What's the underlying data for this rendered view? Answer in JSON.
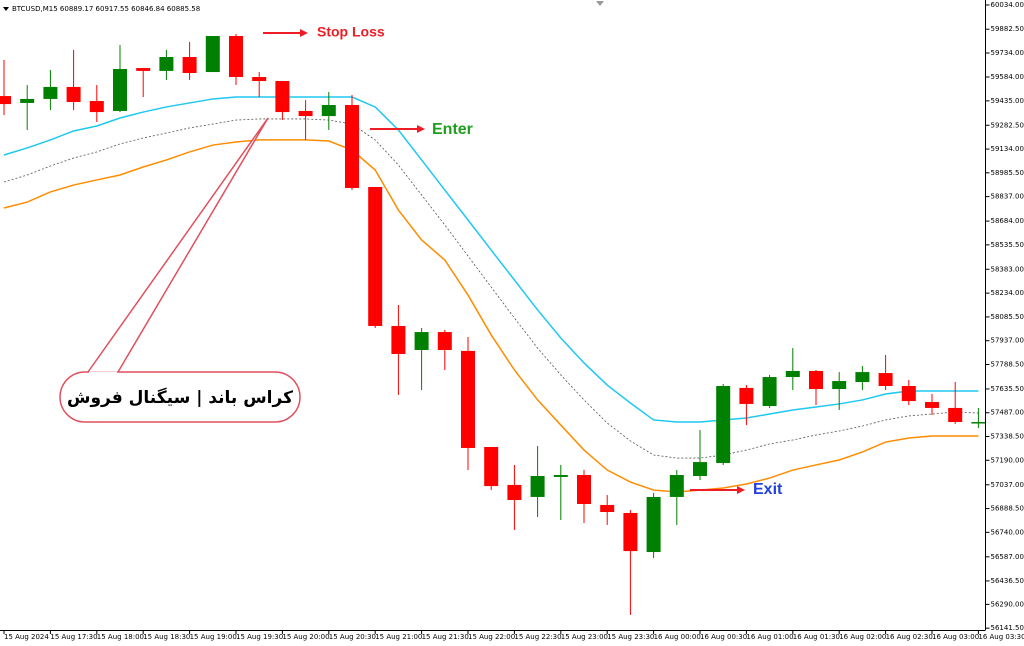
{
  "chart_data": {
    "type": "candlestick",
    "header": "BTCUSD,M15  60889.17 60917.55 60846.84 60885.58",
    "categories": [
      "15 Aug 2024",
      null,
      "15 Aug 17:30",
      null,
      "15 Aug 18:00",
      null,
      "15 Aug 18:30",
      null,
      "15 Aug 19:00",
      null,
      "15 Aug 19:30",
      null,
      "15 Aug 20:00",
      null,
      "15 Aug 20:30",
      null,
      "15 Aug 21:00",
      null,
      "15 Aug 21:30",
      null,
      "15 Aug 22:00",
      null,
      "15 Aug 22:30",
      null,
      "15 Aug 23:00",
      null,
      "15 Aug 23:30",
      null,
      "16 Aug 00:00",
      null,
      "16 Aug 00:30",
      null,
      "16 Aug 01:00",
      null,
      "16 Aug 01:30",
      null,
      "16 Aug 02:00",
      null,
      "16 Aug 02:30",
      null,
      "16 Aug 03:00",
      null,
      "16 Aug 03:30"
    ],
    "open": [
      59465,
      59422,
      59447,
      59522,
      59434,
      59372,
      59640,
      59622,
      59709,
      59615,
      59840,
      59584,
      59559,
      59372,
      59340,
      59409,
      58897,
      58029,
      57879,
      57991,
      57873,
      57273,
      57036,
      56961,
      57086,
      57098,
      56911,
      56861,
      56617,
      56961,
      57092,
      57173,
      57642,
      57529,
      57710,
      57748,
      57635,
      57679,
      57735,
      57654,
      57554,
      57517,
      57423
    ],
    "high": [
      59690,
      59534,
      59628,
      59753,
      59534,
      59784,
      59640,
      59753,
      59803,
      59840,
      59853,
      59615,
      59559,
      59440,
      59490,
      59472,
      58897,
      58160,
      58016,
      58004,
      57960,
      57273,
      57161,
      57279,
      57161,
      57129,
      56973,
      56880,
      56986,
      57129,
      57379,
      57667,
      57660,
      57723,
      57891,
      57754,
      57741,
      57779,
      57848,
      57692,
      57604,
      57679,
      57517
    ],
    "low": [
      59347,
      59253,
      59378,
      59378,
      59303,
      59365,
      59459,
      59565,
      59565,
      59615,
      59534,
      59459,
      59315,
      59191,
      59253,
      58878,
      58016,
      57598,
      57629,
      57754,
      57129,
      57004,
      56755,
      56836,
      56817,
      56798,
      56786,
      56224,
      56580,
      56786,
      57067,
      57161,
      57410,
      57517,
      57629,
      57535,
      57504,
      57629,
      57629,
      57535,
      57473,
      57417,
      57392
    ],
    "close": [
      59415,
      59447,
      59522,
      59428,
      59365,
      59634,
      59622,
      59709,
      59609,
      59840,
      59584,
      59559,
      59365,
      59340,
      59409,
      58891,
      58029,
      57854,
      57991,
      57879,
      57267,
      57029,
      56942,
      57092,
      57098,
      56917,
      56867,
      56623,
      56961,
      57098,
      57179,
      57654,
      57542,
      57710,
      57748,
      57635,
      57685,
      57741,
      57654,
      57560,
      57517,
      57429,
      57429
    ],
    "up_color": "#008000",
    "down_color": "#ff0000",
    "bands": [
      {
        "color": "#1ec8f0",
        "dashed": false,
        "values": [
          59097,
          59141,
          59191,
          59247,
          59278,
          59328,
          59365,
          59397,
          59422,
          59447,
          59459,
          59459,
          59459,
          59459,
          59459,
          59459,
          59397,
          59253,
          59066,
          58878,
          58691,
          58503,
          58316,
          58129,
          57954,
          57798,
          57660,
          57548,
          57442,
          57429,
          57429,
          57442,
          57454,
          57479,
          57504,
          57523,
          57542,
          57567,
          57604,
          57623,
          57623,
          57623,
          57623
        ]
      },
      {
        "color": "#555555",
        "dashed": true,
        "values": [
          58928,
          58972,
          59028,
          59078,
          59116,
          59166,
          59203,
          59234,
          59266,
          59290,
          59315,
          59322,
          59322,
          59322,
          59315,
          59290,
          59191,
          59034,
          58847,
          58660,
          58466,
          58272,
          58079,
          57891,
          57723,
          57567,
          57423,
          57311,
          57223,
          57204,
          57204,
          57223,
          57254,
          57292,
          57317,
          57348,
          57373,
          57404,
          57442,
          57467,
          57479,
          57492,
          57485
        ]
      },
      {
        "color": "#ff8c00",
        "dashed": false,
        "values": [
          58766,
          58803,
          58866,
          58909,
          58941,
          58972,
          59022,
          59066,
          59116,
          59159,
          59178,
          59191,
          59191,
          59191,
          59184,
          59128,
          59003,
          58753,
          58566,
          58441,
          58222,
          57973,
          57754,
          57567,
          57410,
          57254,
          57129,
          57054,
          57004,
          56992,
          57004,
          57017,
          57042,
          57079,
          57129,
          57161,
          57192,
          57242,
          57304,
          57329,
          57342,
          57342,
          57342
        ]
      }
    ],
    "ylim": [
      56130,
      60065
    ],
    "yticks": [
      {
        "value": 60034,
        "label": "60034.00"
      },
      {
        "value": 59882.5,
        "label": "59882.50"
      },
      {
        "value": 59734,
        "label": "59734.00"
      },
      {
        "value": 59584,
        "label": "59584.00"
      },
      {
        "value": 59435,
        "label": "59435.00"
      },
      {
        "value": 59282.5,
        "label": "59282.50"
      },
      {
        "value": 59134,
        "label": "59134.00"
      },
      {
        "value": 58985.5,
        "label": "58985.50"
      },
      {
        "value": 58837,
        "label": "58837.00"
      },
      {
        "value": 58684,
        "label": "58684.00"
      },
      {
        "value": 58535.5,
        "label": "58535.50"
      },
      {
        "value": 58383,
        "label": "58383.00"
      },
      {
        "value": 58234,
        "label": "58234.00"
      },
      {
        "value": 58085.5,
        "label": "58085.50"
      },
      {
        "value": 57937,
        "label": "57937.00"
      },
      {
        "value": 57788.5,
        "label": "57788.50"
      },
      {
        "value": 57635.5,
        "label": "57635.50"
      },
      {
        "value": 57487,
        "label": "57487.00"
      },
      {
        "value": 57338.5,
        "label": "57338.50"
      },
      {
        "value": 57190,
        "label": "57190.00"
      },
      {
        "value": 57037,
        "label": "57037.00"
      },
      {
        "value": 56888.5,
        "label": "56888.50"
      },
      {
        "value": 56740,
        "label": "56740.00"
      },
      {
        "value": 56587,
        "label": "56587.00"
      },
      {
        "value": 56436.5,
        "label": "56436.50"
      },
      {
        "value": 56290,
        "label": "56290.00"
      },
      {
        "value": 56141.5,
        "label": "56141.50"
      }
    ],
    "annotations": [
      {
        "text": "Stop Loss",
        "color": "#ee1c25"
      },
      {
        "text": "Enter",
        "color": "#1ea01e"
      },
      {
        "text": "Exit",
        "color": "#2040e0"
      }
    ],
    "callout": "کراس باند | سیگنال فروش"
  }
}
